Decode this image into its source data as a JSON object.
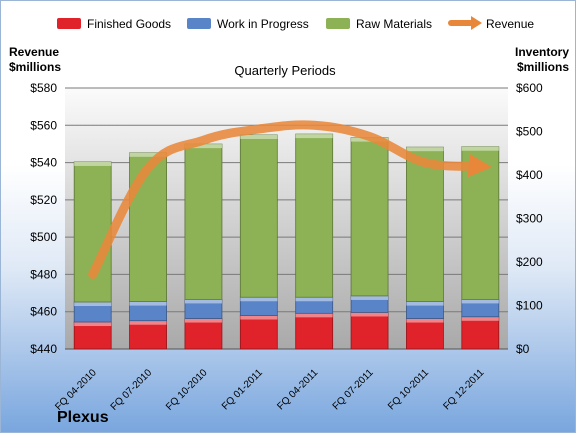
{
  "brand": "Plexus",
  "chart_data": {
    "type": "bar",
    "stacked": true,
    "title": "Quarterly Periods",
    "categories": [
      "FQ 04-2010",
      "FQ 07-2010",
      "FQ 10-2010",
      "FQ 01-2011",
      "FQ 04-2011",
      "FQ 07-2011",
      "FQ 10-2011",
      "FQ 12-2011"
    ],
    "series": [
      {
        "name": "Finished Goods",
        "axis": "right",
        "color": "#e0222a",
        "values": [
          62,
          65,
          70,
          77,
          82,
          84,
          70,
          74
        ]
      },
      {
        "name": "Work in Progress",
        "axis": "right",
        "color": "#5a84c8",
        "values": [
          46,
          44,
          44,
          42,
          37,
          38,
          39,
          40
        ]
      },
      {
        "name": "Raw Materials",
        "axis": "right",
        "color": "#8db255",
        "values": [
          322,
          342,
          357,
          373,
          375,
          364,
          355,
          351
        ]
      },
      {
        "name": "Revenue",
        "axis": "left",
        "type": "line",
        "color": "#e8873a",
        "values": [
          480,
          537,
          552,
          558,
          560,
          554,
          540,
          538
        ]
      }
    ],
    "left_axis": {
      "label": "Revenue $millions",
      "label_lines": [
        "Revenue",
        "$millions"
      ],
      "min": 440,
      "max": 580,
      "ticks": [
        "$440",
        "$460",
        "$480",
        "$500",
        "$520",
        "$540",
        "$560",
        "$580"
      ]
    },
    "right_axis": {
      "label": "Inventory $millions",
      "label_lines": [
        "Inventory",
        "$millions"
      ],
      "min": 0,
      "max": 600,
      "ticks": [
        "$0",
        "$100",
        "$200",
        "$300",
        "$400",
        "$500",
        "$600"
      ]
    },
    "grid": true,
    "legend_position": "top"
  }
}
